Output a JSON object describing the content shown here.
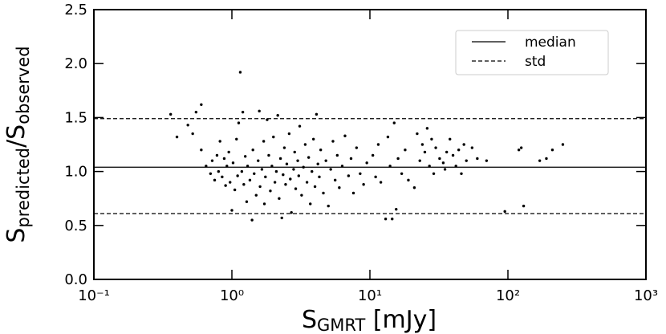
{
  "chart_data": {
    "type": "scatter",
    "x_label": [
      "S",
      "GMRT",
      " [mJy]"
    ],
    "y_label": [
      "S",
      "predicted",
      "/S",
      "observed"
    ],
    "x_scale": "log",
    "xlim": [
      0.1,
      1000
    ],
    "xticks": [
      {
        "value": 0.1,
        "label": "10⁻¹"
      },
      {
        "value": 1,
        "label": "10⁰"
      },
      {
        "value": 10,
        "label": "10¹"
      },
      {
        "value": 100,
        "label": "10²"
      },
      {
        "value": 1000,
        "label": "10³"
      }
    ],
    "ylim": [
      0,
      2.5
    ],
    "yticks": [
      {
        "value": 0,
        "label": "0.0"
      },
      0.5,
      {
        "value": 1,
        "label": "1.0"
      },
      1.5,
      {
        "value": 2,
        "label": "2.0"
      },
      2.5
    ],
    "legend": "upper right",
    "color": "#000000",
    "lines": [
      {
        "name": "median",
        "style": "solid",
        "values": [
          1.04
        ]
      },
      {
        "name": "std",
        "style": "dashed",
        "values": [
          1.49,
          0.61
        ]
      }
    ],
    "x": [
      0.36,
      0.4,
      0.48,
      0.52,
      0.55,
      0.6,
      0.6,
      0.65,
      0.7,
      0.72,
      0.75,
      0.78,
      0.8,
      0.82,
      0.85,
      0.88,
      0.9,
      0.92,
      0.95,
      0.97,
      1.0,
      1.02,
      1.05,
      1.08,
      1.1,
      1.12,
      1.15,
      1.18,
      1.2,
      1.22,
      1.25,
      1.28,
      1.3,
      1.35,
      1.4,
      1.42,
      1.45,
      1.5,
      1.55,
      1.58,
      1.6,
      1.65,
      1.7,
      1.72,
      1.75,
      1.8,
      1.85,
      1.9,
      1.95,
      2.0,
      2.05,
      2.1,
      2.15,
      2.2,
      2.25,
      2.3,
      2.35,
      2.4,
      2.45,
      2.5,
      2.6,
      2.65,
      2.7,
      2.8,
      2.85,
      2.9,
      3.0,
      3.05,
      3.1,
      3.2,
      3.3,
      3.4,
      3.5,
      3.6,
      3.7,
      3.8,
      3.9,
      4.0,
      4.1,
      4.2,
      4.3,
      4.4,
      4.6,
      4.8,
      5.0,
      5.2,
      5.4,
      5.6,
      5.8,
      6.0,
      6.3,
      6.6,
      7.0,
      7.3,
      7.6,
      8.0,
      8.5,
      9.0,
      9.5,
      10.5,
      11,
      11.5,
      12,
      13,
      13.5,
      14,
      14.5,
      15,
      15.5,
      16,
      17,
      18,
      19,
      21,
      22,
      23,
      24,
      25,
      26,
      27,
      28,
      29,
      30,
      32,
      34,
      35,
      36,
      38,
      40,
      42,
      44,
      46,
      48,
      50,
      55,
      60,
      70,
      95,
      120,
      125,
      130,
      170,
      190,
      210,
      250
    ],
    "values": [
      1.53,
      1.32,
      1.43,
      1.35,
      1.55,
      1.62,
      1.2,
      1.05,
      0.98,
      1.1,
      0.92,
      1.15,
      1.0,
      1.28,
      0.95,
      1.12,
      0.87,
      1.05,
      1.18,
      0.9,
      0.64,
      1.08,
      0.83,
      1.3,
      0.96,
      1.45,
      1.92,
      1.0,
      1.55,
      0.88,
      1.14,
      0.72,
      1.05,
      0.92,
      0.55,
      1.2,
      0.98,
      0.78,
      1.1,
      1.56,
      0.86,
      1.02,
      1.28,
      0.7,
      0.95,
      1.48,
      1.15,
      0.82,
      1.05,
      1.32,
      0.9,
      1.0,
      1.52,
      0.75,
      1.12,
      0.57,
      0.97,
      1.22,
      0.88,
      1.07,
      1.35,
      0.93,
      0.62,
      1.02,
      1.18,
      0.84,
      1.1,
      0.96,
      1.42,
      0.78,
      1.04,
      1.25,
      0.9,
      1.13,
      0.7,
      1.0,
      1.3,
      0.86,
      1.53,
      1.07,
      0.95,
      1.2,
      0.8,
      1.1,
      0.68,
      1.02,
      1.28,
      0.92,
      1.15,
      0.85,
      1.05,
      1.33,
      0.96,
      1.12,
      0.8,
      1.22,
      0.98,
      0.88,
      1.08,
      1.15,
      0.95,
      1.25,
      0.9,
      0.56,
      1.32,
      1.05,
      0.56,
      1.45,
      0.65,
      1.12,
      0.98,
      1.2,
      0.92,
      0.85,
      1.35,
      1.1,
      1.25,
      1.18,
      1.4,
      1.05,
      1.3,
      0.98,
      1.22,
      1.12,
      1.08,
      1.02,
      1.18,
      1.3,
      1.15,
      1.05,
      1.2,
      0.98,
      1.25,
      1.1,
      1.22,
      1.12,
      1.1,
      0.63,
      1.2,
      1.22,
      0.68,
      1.1,
      1.12,
      1.2,
      1.25
    ]
  }
}
